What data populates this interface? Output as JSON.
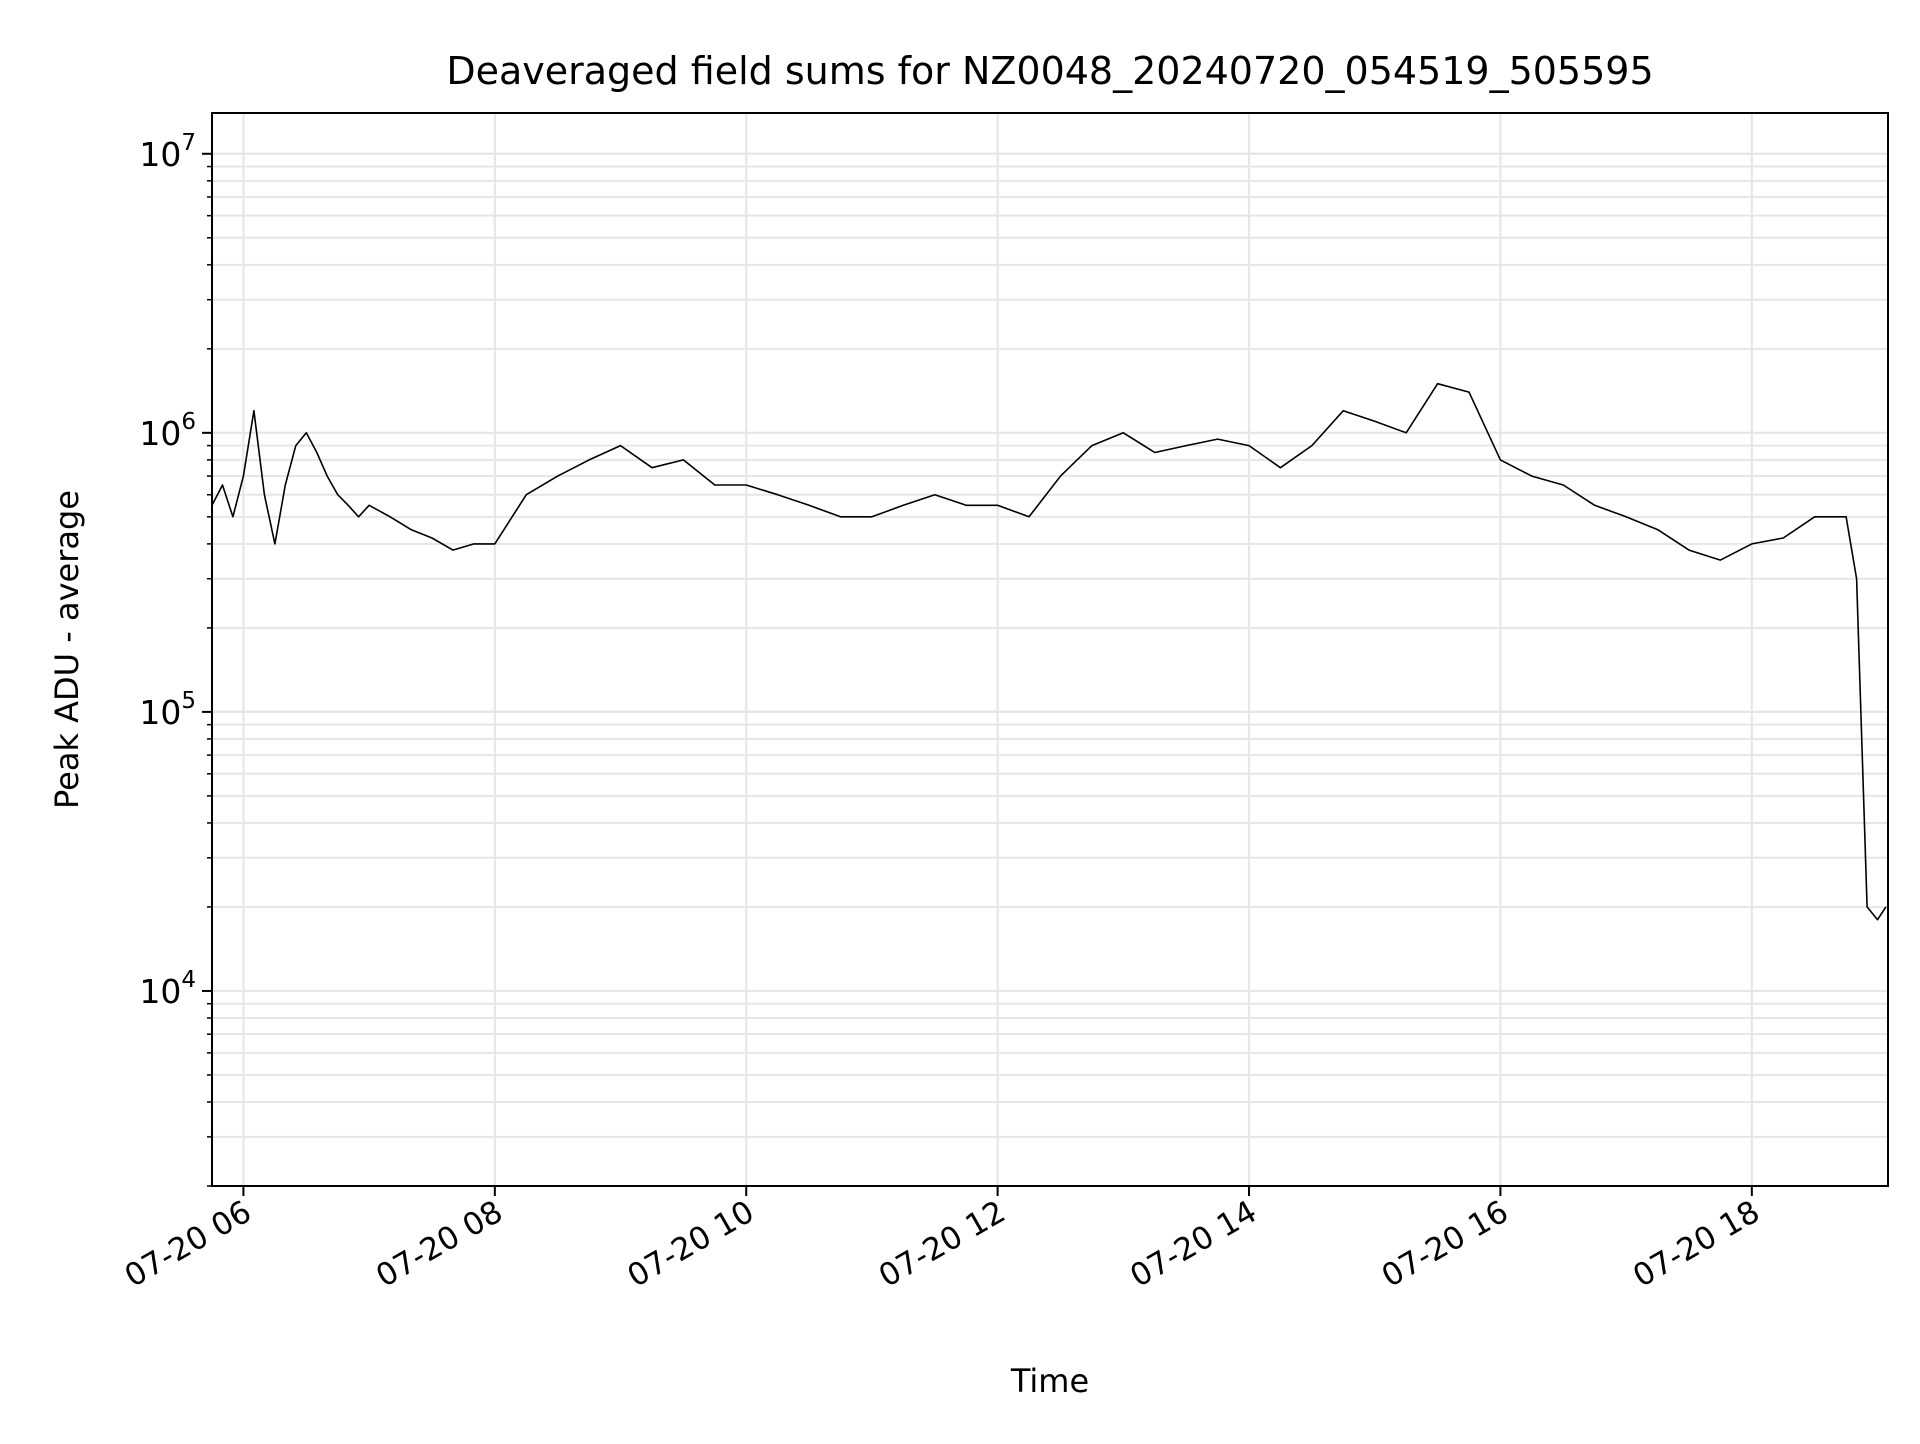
{
  "chart_data": {
    "type": "line",
    "title": "Deaveraged field sums for NZ0048_20240720_054519_505595",
    "xlabel": "Time",
    "ylabel": "Peak ADU - average",
    "yscale": "log",
    "ylim": [
      2000,
      14000000
    ],
    "xlim": [
      "2024-07-20 05:45",
      "2024-07-20 19:05"
    ],
    "x_ticks": [
      {
        "time": "2024-07-20 06:00",
        "label": "07-20 06"
      },
      {
        "time": "2024-07-20 08:00",
        "label": "07-20 08"
      },
      {
        "time": "2024-07-20 10:00",
        "label": "07-20 10"
      },
      {
        "time": "2024-07-20 12:00",
        "label": "07-20 12"
      },
      {
        "time": "2024-07-20 14:00",
        "label": "07-20 14"
      },
      {
        "time": "2024-07-20 16:00",
        "label": "07-20 16"
      },
      {
        "time": "2024-07-20 18:00",
        "label": "07-20 18"
      }
    ],
    "y_ticks": [
      {
        "value": 10000,
        "base": "10",
        "exp": "4"
      },
      {
        "value": 100000,
        "base": "10",
        "exp": "5"
      },
      {
        "value": 1000000,
        "base": "10",
        "exp": "6"
      },
      {
        "value": 10000000,
        "base": "10",
        "exp": "7"
      }
    ],
    "grid": true,
    "line_color": "#000000",
    "grid_color": "#e6e6e6",
    "series": [
      {
        "x": [
          "2024-07-20 05:45",
          "2024-07-20 05:50",
          "2024-07-20 05:55",
          "2024-07-20 06:00",
          "2024-07-20 06:05",
          "2024-07-20 06:10",
          "2024-07-20 06:15",
          "2024-07-20 06:20",
          "2024-07-20 06:25",
          "2024-07-20 06:30",
          "2024-07-20 06:35",
          "2024-07-20 06:40",
          "2024-07-20 06:45",
          "2024-07-20 06:50",
          "2024-07-20 06:55",
          "2024-07-20 07:00",
          "2024-07-20 07:10",
          "2024-07-20 07:20",
          "2024-07-20 07:30",
          "2024-07-20 07:40",
          "2024-07-20 07:50",
          "2024-07-20 08:00",
          "2024-07-20 08:15",
          "2024-07-20 08:30",
          "2024-07-20 08:45",
          "2024-07-20 09:00",
          "2024-07-20 09:15",
          "2024-07-20 09:30",
          "2024-07-20 09:45",
          "2024-07-20 10:00",
          "2024-07-20 10:15",
          "2024-07-20 10:30",
          "2024-07-20 10:45",
          "2024-07-20 11:00",
          "2024-07-20 11:15",
          "2024-07-20 11:30",
          "2024-07-20 11:45",
          "2024-07-20 12:00",
          "2024-07-20 12:15",
          "2024-07-20 12:30",
          "2024-07-20 12:45",
          "2024-07-20 13:00",
          "2024-07-20 13:15",
          "2024-07-20 13:30",
          "2024-07-20 13:45",
          "2024-07-20 14:00",
          "2024-07-20 14:15",
          "2024-07-20 14:30",
          "2024-07-20 14:45",
          "2024-07-20 15:00",
          "2024-07-20 15:15",
          "2024-07-20 15:30",
          "2024-07-20 15:45",
          "2024-07-20 16:00",
          "2024-07-20 16:15",
          "2024-07-20 16:30",
          "2024-07-20 16:45",
          "2024-07-20 17:00",
          "2024-07-20 17:15",
          "2024-07-20 17:30",
          "2024-07-20 17:45",
          "2024-07-20 18:00",
          "2024-07-20 18:15",
          "2024-07-20 18:30",
          "2024-07-20 18:45",
          "2024-07-20 18:50",
          "2024-07-20 18:55",
          "2024-07-20 19:00",
          "2024-07-20 19:04"
        ],
        "y": [
          550000,
          650000,
          500000,
          700000,
          1200000,
          600000,
          400000,
          650000,
          900000,
          1000000,
          850000,
          700000,
          600000,
          550000,
          500000,
          550000,
          500000,
          450000,
          420000,
          380000,
          400000,
          400000,
          600000,
          700000,
          800000,
          900000,
          750000,
          800000,
          650000,
          650000,
          600000,
          550000,
          500000,
          500000,
          550000,
          600000,
          550000,
          550000,
          500000,
          700000,
          900000,
          1000000,
          850000,
          900000,
          950000,
          900000,
          750000,
          900000,
          1200000,
          1100000,
          1000000,
          1500000,
          1400000,
          800000,
          700000,
          650000,
          550000,
          500000,
          450000,
          380000,
          350000,
          400000,
          420000,
          500000,
          500000,
          300000,
          20000,
          18000,
          20000
        ]
      }
    ]
  }
}
